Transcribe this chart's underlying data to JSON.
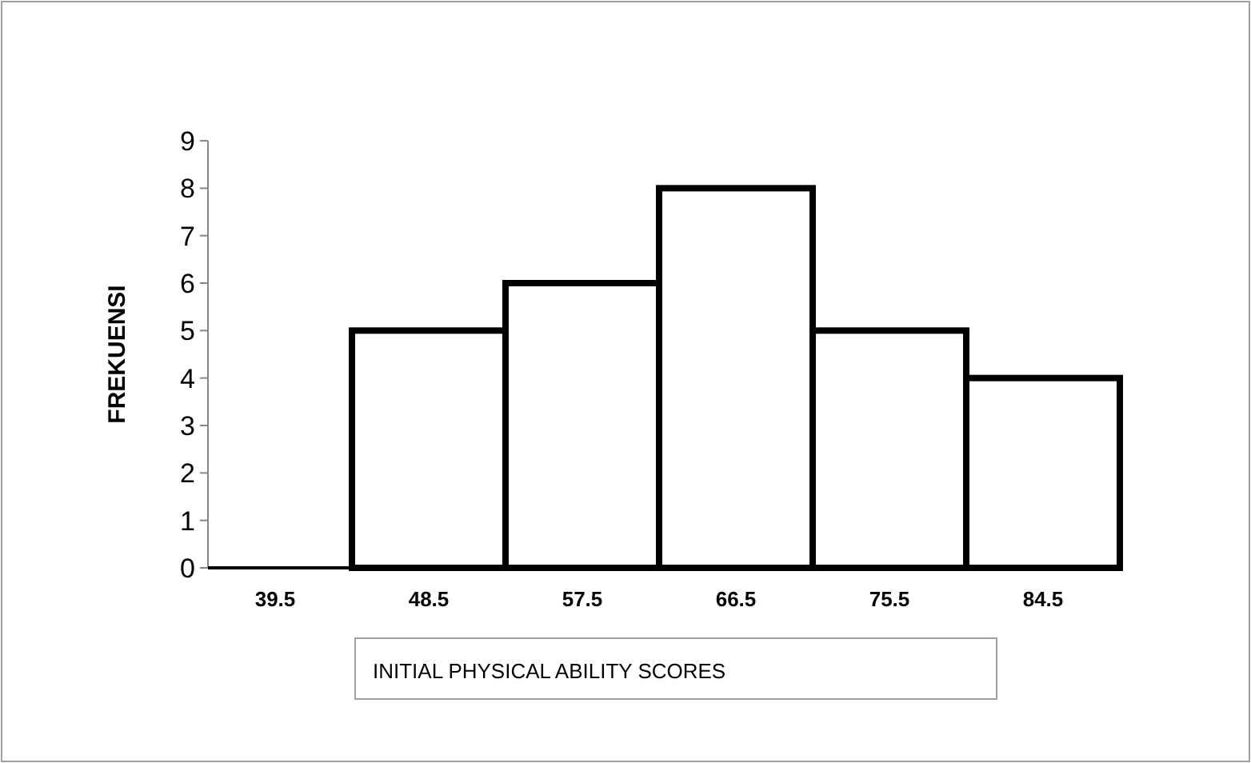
{
  "chart_data": {
    "type": "bar",
    "ylabel": "FREKUENSI",
    "xlabel": "INITIAL PHYSICAL ABILITY SCORES",
    "categories": [
      "39.5",
      "48.5",
      "57.5",
      "66.5",
      "75.5",
      "84.5"
    ],
    "values": [
      null,
      5,
      6,
      8,
      5,
      4
    ],
    "color": "#ffffff",
    "ylim": [
      0,
      9
    ],
    "yticks": [
      0,
      1,
      2,
      3,
      4,
      5,
      6,
      7,
      8,
      9
    ],
    "grid": false
  }
}
